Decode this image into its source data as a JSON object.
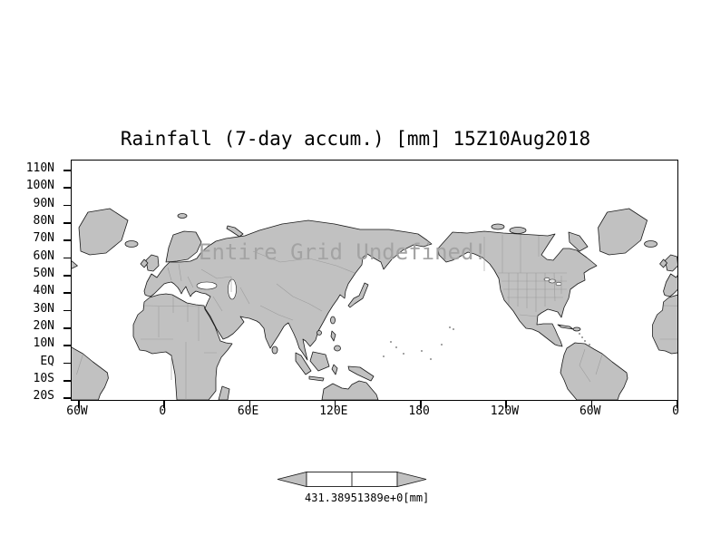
{
  "title": "Rainfall (7-day accum.) [mm] 15Z10Aug2018",
  "overlay_message": "Entire Grid Undefined!",
  "axes": {
    "lat_labels": [
      "110N",
      "100N",
      "90N",
      "80N",
      "70N",
      "60N",
      "50N",
      "40N",
      "30N",
      "20N",
      "10N",
      "EQ",
      "10S",
      "20S"
    ],
    "lon_labels": [
      "60W",
      "0",
      "60E",
      "120E",
      "180",
      "120W",
      "60W",
      "0"
    ]
  },
  "colorbar": {
    "left_label": "431.389",
    "right_label": "51389e+0",
    "unit": "[mm]"
  },
  "colors": {
    "background": "#ffffff",
    "land": "#c1c1c1",
    "coastline": "#1a1a1a",
    "message_gray": "#a3a3a3"
  },
  "chart_data": {
    "type": "map",
    "title": "Rainfall (7-day accum.) [mm] 15Z10Aug2018",
    "variable": "Rainfall (7-day accum.)",
    "unit": "mm",
    "valid_time": "15Z10Aug2018",
    "projection": "lat-lon cylindrical, world wrap from 60W eastward to 0",
    "lat_axis_ticks": [
      "110N",
      "100N",
      "90N",
      "80N",
      "70N",
      "60N",
      "50N",
      "40N",
      "30N",
      "20N",
      "10N",
      "EQ",
      "10S",
      "20S"
    ],
    "lon_axis_ticks": [
      "60W",
      "0",
      "60E",
      "120E",
      "180",
      "120W",
      "60W",
      "0"
    ],
    "data_status": "Entire Grid Undefined!",
    "plotted_values": [],
    "colorbar": {
      "labels": [
        "431.389",
        "51389e+0"
      ],
      "unit": "[mm]",
      "style": "arrow ends, empty white segments"
    }
  }
}
